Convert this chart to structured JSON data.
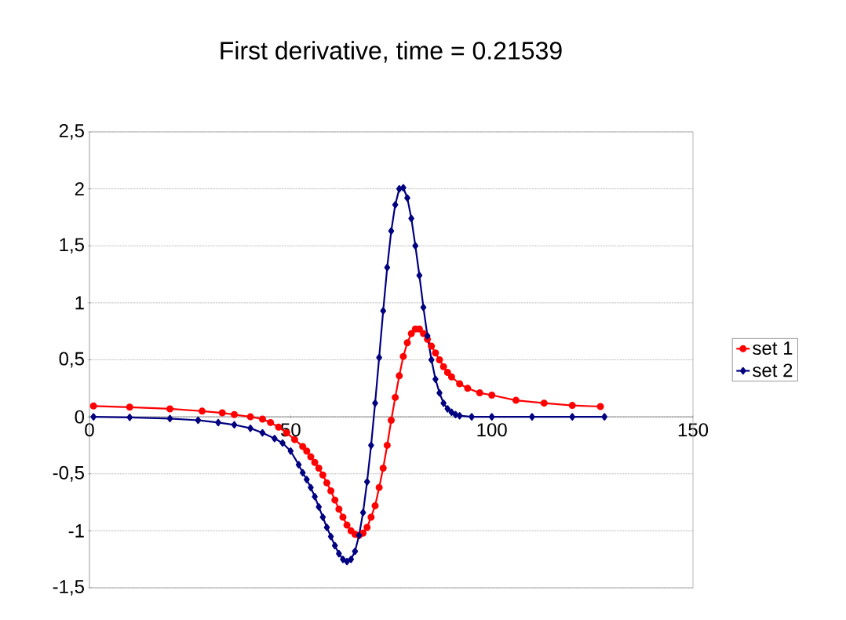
{
  "chart_data": {
    "type": "line",
    "title": "First derivative, time = 0.21539",
    "xlim": [
      0,
      150
    ],
    "xticks": [
      0,
      50,
      100,
      150
    ],
    "ylim": [
      -1.5,
      2.5
    ],
    "yticks": [
      {
        "value": -1.5,
        "label": "-1,5"
      },
      {
        "value": -1,
        "label": "-1"
      },
      {
        "value": -0.5,
        "label": "-0,5"
      },
      {
        "value": 0,
        "label": "0"
      },
      {
        "value": 0.5,
        "label": "0,5"
      },
      {
        "value": 1,
        "label": "1"
      },
      {
        "value": 1.5,
        "label": "1,5"
      },
      {
        "value": 2,
        "label": "2"
      },
      {
        "value": 2.5,
        "label": "2,5"
      }
    ],
    "grid": "y",
    "legend": "right",
    "line_style": "solid",
    "series": [
      {
        "name": "set 1",
        "color": "#ff0000",
        "marker": "circle",
        "x": [
          1,
          10,
          20,
          28,
          33,
          36,
          40,
          43,
          45,
          47,
          49,
          51,
          53,
          54,
          55,
          56,
          57,
          58,
          59,
          60,
          61,
          62,
          63,
          64,
          65,
          66,
          67,
          68,
          69,
          70,
          71,
          72,
          73,
          74,
          75,
          76,
          77,
          78,
          79,
          80,
          81,
          82,
          83,
          84,
          85,
          86,
          87,
          88,
          89,
          90,
          92,
          94,
          97,
          100,
          106,
          113,
          120,
          127
        ],
        "values": [
          0.095,
          0.085,
          0.07,
          0.05,
          0.035,
          0.02,
          0.0,
          -0.02,
          -0.05,
          -0.09,
          -0.14,
          -0.2,
          -0.26,
          -0.3,
          -0.35,
          -0.4,
          -0.45,
          -0.51,
          -0.58,
          -0.65,
          -0.73,
          -0.81,
          -0.88,
          -0.95,
          -1.0,
          -1.03,
          -1.04,
          -1.02,
          -0.97,
          -0.88,
          -0.78,
          -0.62,
          -0.45,
          -0.25,
          -0.03,
          0.17,
          0.36,
          0.53,
          0.65,
          0.73,
          0.77,
          0.77,
          0.73,
          0.68,
          0.62,
          0.56,
          0.5,
          0.44,
          0.39,
          0.35,
          0.29,
          0.25,
          0.21,
          0.19,
          0.145,
          0.12,
          0.1,
          0.09
        ]
      },
      {
        "name": "set 2",
        "color": "#000080",
        "marker": "diamond",
        "x": [
          1,
          10,
          20,
          27,
          32,
          36,
          40,
          43,
          46,
          48,
          50,
          52,
          53,
          54,
          55,
          56,
          57,
          58,
          59,
          60,
          61,
          62,
          63,
          64,
          65,
          66,
          67,
          68,
          69,
          70,
          71,
          72,
          73,
          74,
          75,
          76,
          77,
          78,
          79,
          80,
          81,
          82,
          83,
          84,
          85,
          86,
          87,
          88,
          89,
          90,
          91,
          92,
          95,
          100,
          110,
          120,
          128
        ],
        "values": [
          0,
          -0.005,
          -0.015,
          -0.03,
          -0.05,
          -0.07,
          -0.1,
          -0.14,
          -0.19,
          -0.23,
          -0.3,
          -0.42,
          -0.49,
          -0.55,
          -0.62,
          -0.7,
          -0.79,
          -0.88,
          -0.97,
          -1.05,
          -1.13,
          -1.2,
          -1.25,
          -1.27,
          -1.25,
          -1.18,
          -1.04,
          -0.84,
          -0.57,
          -0.25,
          0.12,
          0.52,
          0.93,
          1.31,
          1.63,
          1.86,
          2.0,
          2.01,
          1.92,
          1.74,
          1.5,
          1.24,
          0.96,
          0.71,
          0.5,
          0.33,
          0.21,
          0.12,
          0.07,
          0.04,
          0.02,
          0.01,
          0,
          0,
          0,
          0,
          0
        ]
      }
    ]
  }
}
